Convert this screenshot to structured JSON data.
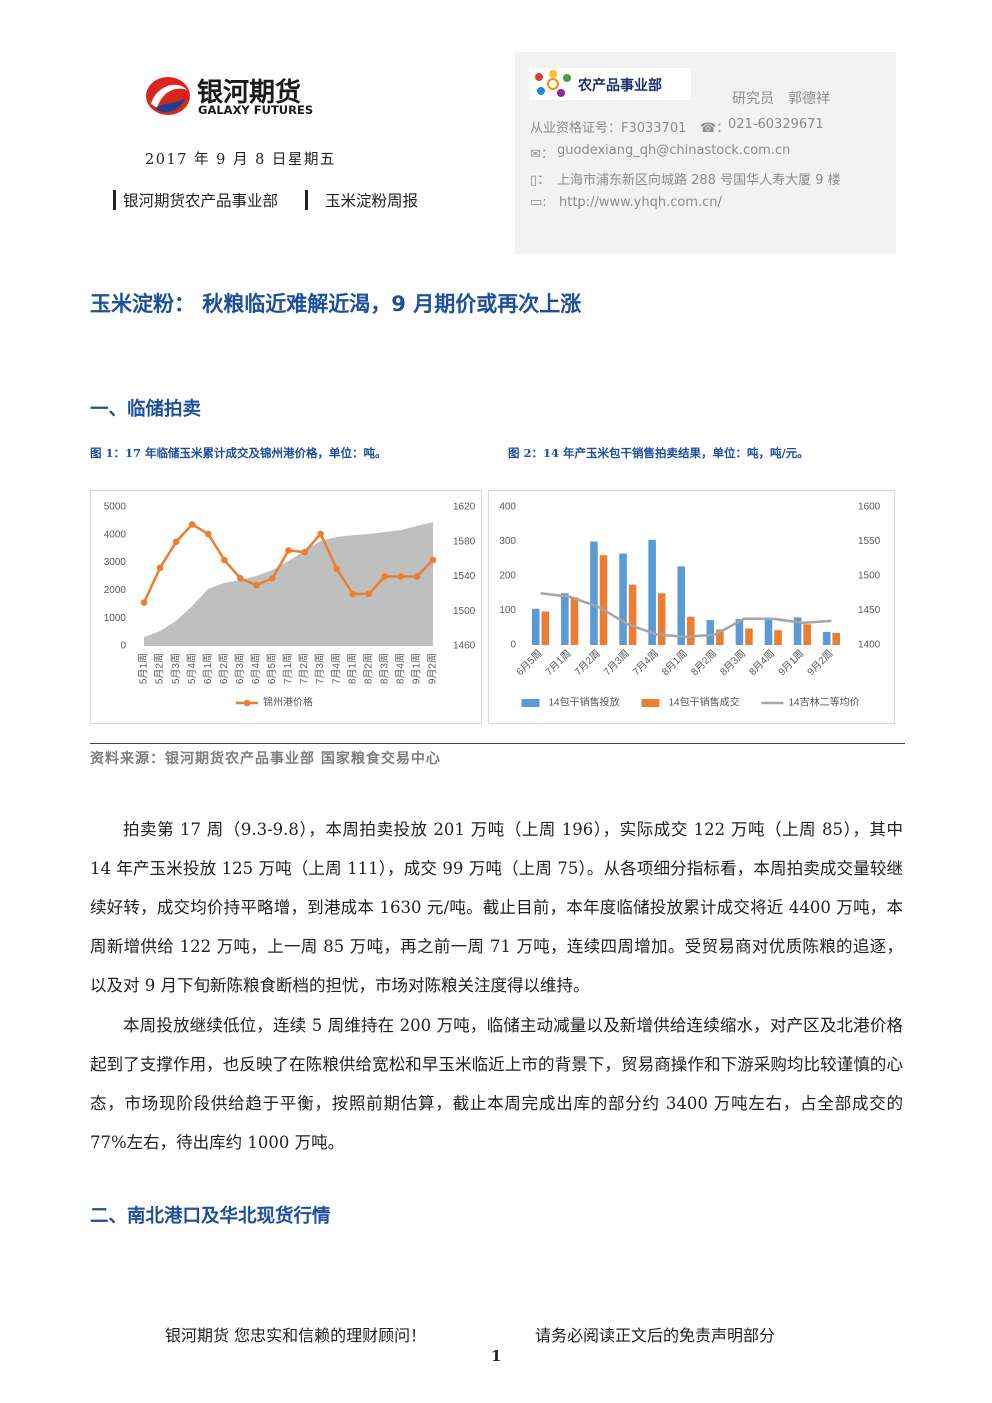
{
  "header": {
    "logo_cn": "银河期货",
    "logo_en": "GALAXY FUTURES",
    "date": "2017 年 9 月 8 日星期五",
    "department": "银河期货农产品事业部",
    "report": "玉米淀粉周报"
  },
  "contact": {
    "unit": "农产品事业部",
    "analyst": "研究员　郭德祥",
    "license": "从业资格证号：F3033701",
    "phone": "021-60329671",
    "email": "guodexiang_qh@chinastock.com.cn",
    "address": "上海市浦东新区向城路 288 号国华人寿大厦 9 楼",
    "website": "http://www.yhqh.com.cn/"
  },
  "title": "玉米淀粉： 秋粮临近难解近渴，9 月期价或再次上涨",
  "sections": [
    {
      "heading": "一、临储拍卖"
    },
    {
      "heading": "二、南北港口及华北现货行情"
    }
  ],
  "figures": [
    {
      "caption": "图 1：17 年临储玉米累计成交及锦州港价格，单位：吨。"
    },
    {
      "caption": "图 2：14 年产玉米包干销售拍卖结果，单位：吨，吨/元。"
    }
  ],
  "chart_data": [
    {
      "type": "combo",
      "categories": [
        "5月1周",
        "5月2周",
        "5月3周",
        "5月4周",
        "6月1周",
        "6月2周",
        "6月3周",
        "6月4周",
        "6月5周",
        "7月1周",
        "7月2周",
        "7月3周",
        "7月4周",
        "8月1周",
        "8月2周",
        "8月3周",
        "8月4周",
        "9月1周",
        "9月2周"
      ],
      "ylim": [
        0,
        5000
      ],
      "yticks": [
        0,
        1000,
        2000,
        3000,
        4000,
        5000
      ],
      "y2lim": [
        1460,
        1620
      ],
      "y2ticks": [
        1460,
        1500,
        1540,
        1580,
        1620
      ],
      "grid": false,
      "legend": "bottom",
      "x_label_rotation": -90,
      "series": [
        {
          "type": "area",
          "color": "#bfbfbf",
          "values": [
            320,
            540,
            900,
            1440,
            2050,
            2270,
            2370,
            2520,
            2730,
            3060,
            3420,
            3780,
            3920,
            3990,
            4030,
            4100,
            4170,
            4320,
            4460
          ]
        },
        {
          "name": "锦州港价格",
          "type": "line",
          "axis": "y2",
          "color": "#ed7d31",
          "markers": true,
          "values": [
            1510,
            1550,
            1580,
            1600,
            1589,
            1559,
            1538,
            1530,
            1538,
            1570,
            1568,
            1589,
            1549,
            1520,
            1520,
            1540,
            1540,
            1540,
            1559
          ]
        }
      ]
    },
    {
      "type": "combo",
      "categories": [
        "6月5周",
        "7月1周",
        "7月2周",
        "7月3周",
        "7月4周",
        "8月1周",
        "8月2周",
        "8月3周",
        "8月4周",
        "9月1周",
        "9月2周"
      ],
      "ylim": [
        0,
        400
      ],
      "yticks": [
        0,
        100,
        200,
        300,
        400
      ],
      "y2lim": [
        1400,
        1600
      ],
      "y2ticks": [
        1400,
        1450,
        1500,
        1550,
        1600
      ],
      "grid": false,
      "legend": "bottom",
      "x_label_rotation": -45,
      "series": [
        {
          "name": "14包干销售投放",
          "type": "bar",
          "color": "#5b9bd5",
          "values": [
            105,
            150,
            300,
            265,
            305,
            228,
            72,
            75,
            75,
            80,
            38
          ]
        },
        {
          "name": "14包干销售成交",
          "type": "bar",
          "color": "#ed7d31",
          "values": [
            97,
            138,
            260,
            175,
            150,
            82,
            45,
            48,
            43,
            60,
            35
          ]
        },
        {
          "name": "14吉林二等均价",
          "type": "line",
          "axis": "y2",
          "color": "#a5a5a5",
          "markers": false,
          "values": [
            1475,
            1470,
            1455,
            1430,
            1415,
            1412,
            1415,
            1438,
            1438,
            1432,
            1435
          ]
        }
      ]
    }
  ],
  "source": "资料来源：银河期货农产品事业部 国家粮食交易中心",
  "paragraphs": [
    "拍卖第 17 周（9.3-9.8），本周拍卖投放 201 万吨（上周 196），实际成交 122 万吨（上周 85），其中 14 年产玉米投放 125 万吨（上周 111），成交 99 万吨（上周 75）。从各项细分指标看，本周拍卖成交量较继续好转，成交均价持平略增，到港成本 1630 元/吨。截止目前，本年度临储投放累计成交将近 4400 万吨，本周新增供给 122 万吨，上一周 85 万吨，再之前一周 71 万吨，连续四周增加。受贸易商对优质陈粮的追逐，以及对 9 月下旬新陈粮食断档的担忧，市场对陈粮关注度得以维持。",
    "本周投放继续低位，连续 5 周维持在 200 万吨，临储主动减量以及新增供给连续缩水，对产区及北港价格起到了支撑作用，也反映了在陈粮供给宽松和早玉米临近上市的背景下，贸易商操作和下游采购均比较谨慎的心态，市场现阶段供给趋于平衡，按照前期估算，截止本周完成出库的部分约 3400 万吨左右，占全部成交的 77%左右，待出库约 1000 万吨。"
  ],
  "footer": {
    "slogan": "银河期货 您忠实和信赖的理财顾问！",
    "disclaimer": "请务必阅读正文后的免责声明部分",
    "page": "1"
  }
}
